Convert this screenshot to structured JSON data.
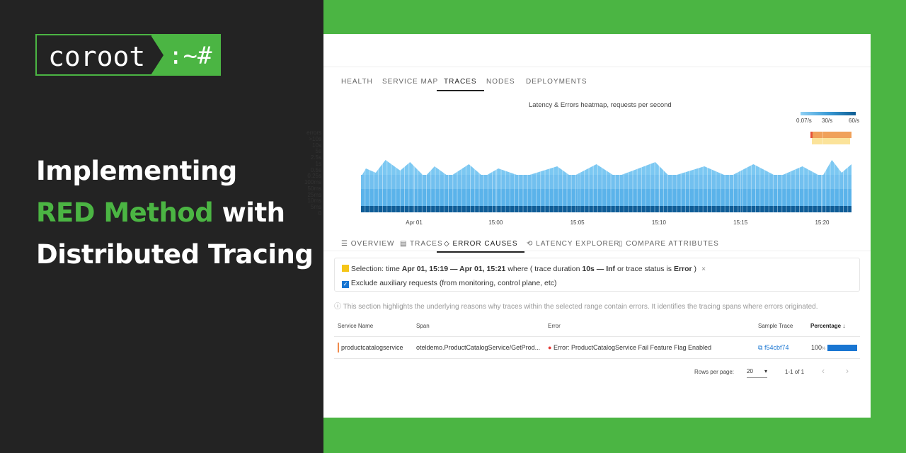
{
  "brand": {
    "name": "coroot",
    "prompt": ":~#"
  },
  "headline": {
    "line1": "Implementing",
    "highlight": "RED Method",
    "line2_rest": "with",
    "line3": "Distributed Tracing"
  },
  "app": {
    "tabs": [
      "HEALTH",
      "SERVICE MAP",
      "TRACES",
      "NODES",
      "DEPLOYMENTS"
    ],
    "heatmap": {
      "title": "Latency & Errors heatmap, requests per second",
      "legend": [
        "0.07/s",
        "30/s",
        "60/s"
      ],
      "y_labels": [
        "errors",
        ">10s",
        "10s",
        "5s",
        "2.5s",
        "1s",
        "0.5s",
        "0.25s",
        "100ms",
        "50ms",
        "25ms",
        "10ms",
        "5ms",
        "0"
      ],
      "x_labels": [
        "Apr 01",
        "15:00",
        "15:05",
        "15:10",
        "15:15",
        "15:20"
      ]
    },
    "subtabs": [
      "OVERVIEW",
      "TRACES",
      "ERROR CAUSES",
      "LATENCY EXPLORER",
      "COMPARE ATTRIBUTES"
    ],
    "selection": [
      "Selection: time ",
      "Apr 01, 15:19 — Apr 01, 15:21",
      " where ( trace duration ",
      "10s — Inf",
      " or trace status is ",
      "Error",
      " )"
    ],
    "exclude": "Exclude auxiliary requests (from monitoring, control plane, etc)",
    "note": "This section highlights the underlying reasons why traces within the selected range contain errors. It identifies the tracing spans where errors originated.",
    "table": {
      "columns": [
        "Service Name",
        "Span",
        "Error",
        "Sample Trace",
        "Percentage"
      ],
      "rows": [
        {
          "service": "productcatalogservice",
          "span": "oteldemo.ProductCatalogService/GetProd...",
          "error": "Error: ProductCatalogService Fail Feature Flag Enabled",
          "trace": "f54cbf74",
          "percentage": 100,
          "unit": "%"
        }
      ]
    },
    "pagination": {
      "rows_per_page_label": "Rows per page:",
      "rows_per_page": 20,
      "range": "1-1 of 1"
    }
  }
}
